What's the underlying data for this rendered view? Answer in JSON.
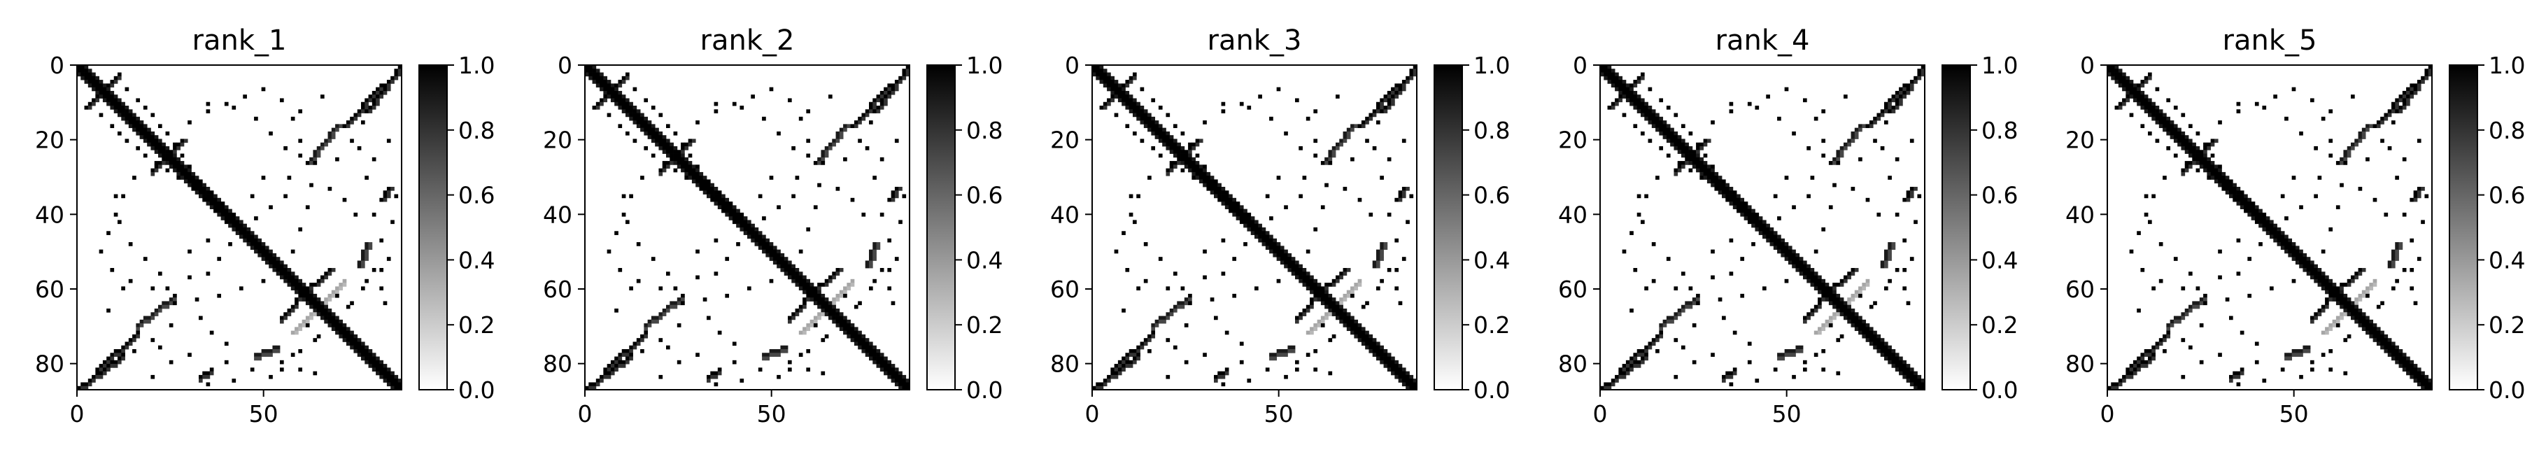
{
  "chart_data": {
    "type": "heatmap",
    "matrix_size": 88,
    "colormap": "gray_r",
    "clim": [
      0,
      1
    ],
    "xlim": [
      0,
      87
    ],
    "ylim": [
      87,
      0
    ],
    "x_ticks": [
      0,
      50
    ],
    "y_ticks": [
      0,
      20,
      40,
      60,
      80
    ],
    "colorbar_ticks": [
      "0.0",
      "0.2",
      "0.4",
      "0.6",
      "0.8",
      "1.0"
    ],
    "panels": [
      {
        "title": "rank_1"
      },
      {
        "title": "rank_2"
      },
      {
        "title": "rank_3"
      },
      {
        "title": "rank_4"
      },
      {
        "title": "rank_5"
      }
    ],
    "contacts": {
      "diagonal_band": {
        "start": 0,
        "end": 87,
        "value": 1
      },
      "off_diagonal_segments": [
        {
          "from": [
            3,
            10
          ],
          "to": [
            11,
            2
          ],
          "value": 1
        },
        {
          "from": [
            0,
            87
          ],
          "to": [
            12,
            78
          ],
          "value": 1
        },
        {
          "from": [
            5,
            82
          ],
          "to": [
            16,
            72
          ],
          "value": 1
        },
        {
          "from": [
            16,
            70
          ],
          "to": [
            26,
            62
          ],
          "value": 0.9
        },
        {
          "from": [
            33,
            84
          ],
          "to": [
            36,
            82
          ],
          "value": 1
        },
        {
          "from": [
            48,
            78
          ],
          "to": [
            54,
            76
          ],
          "value": 0.9
        },
        {
          "from": [
            55,
            68
          ],
          "to": [
            62,
            60
          ],
          "value": 1
        },
        {
          "from": [
            60,
            70
          ],
          "to": [
            72,
            58
          ],
          "value": 0.35
        },
        {
          "from": [
            20,
            28
          ],
          "to": [
            28,
            20
          ],
          "value": 1
        }
      ],
      "scattered_points": [
        [
          13,
          6
        ],
        [
          16,
          9
        ],
        [
          18,
          11
        ],
        [
          20,
          13
        ],
        [
          22,
          16
        ],
        [
          24,
          18
        ],
        [
          26,
          21
        ],
        [
          28,
          24
        ],
        [
          30,
          27
        ],
        [
          33,
          31
        ],
        [
          36,
          34
        ],
        [
          39,
          37
        ],
        [
          42,
          40
        ],
        [
          15,
          30
        ],
        [
          12,
          35
        ],
        [
          10,
          40
        ],
        [
          8,
          45
        ],
        [
          6,
          50
        ],
        [
          9,
          55
        ],
        [
          14,
          58
        ],
        [
          20,
          60
        ],
        [
          26,
          62
        ],
        [
          32,
          63
        ],
        [
          38,
          62
        ],
        [
          44,
          60
        ],
        [
          50,
          58
        ],
        [
          56,
          55
        ],
        [
          35,
          10
        ],
        [
          42,
          11
        ],
        [
          48,
          14
        ],
        [
          52,
          18
        ],
        [
          56,
          22
        ],
        [
          60,
          24
        ],
        [
          64,
          26
        ],
        [
          70,
          25
        ],
        [
          74,
          20
        ],
        [
          77,
          15
        ],
        [
          80,
          10
        ],
        [
          83,
          5
        ],
        [
          85,
          3
        ],
        [
          84,
          20
        ],
        [
          86,
          35
        ],
        [
          85,
          42
        ],
        [
          80,
          55
        ],
        [
          77,
          60
        ],
        [
          74,
          64
        ],
        [
          70,
          70
        ],
        [
          58,
          78
        ],
        [
          55,
          82
        ],
        [
          52,
          84
        ],
        [
          47,
          82
        ],
        [
          40,
          80
        ],
        [
          30,
          78
        ],
        [
          25,
          80
        ],
        [
          22,
          76
        ],
        [
          62,
          70
        ],
        [
          65,
          73
        ],
        [
          50,
          30
        ],
        [
          47,
          35
        ],
        [
          44,
          43
        ],
        [
          41,
          48
        ],
        [
          38,
          52
        ],
        [
          35,
          56
        ],
        [
          30,
          57
        ],
        [
          60,
          12
        ],
        [
          66,
          8
        ],
        [
          82,
          60
        ],
        [
          83,
          64
        ],
        [
          75,
          40
        ],
        [
          72,
          36
        ],
        [
          68,
          33
        ]
      ]
    }
  }
}
